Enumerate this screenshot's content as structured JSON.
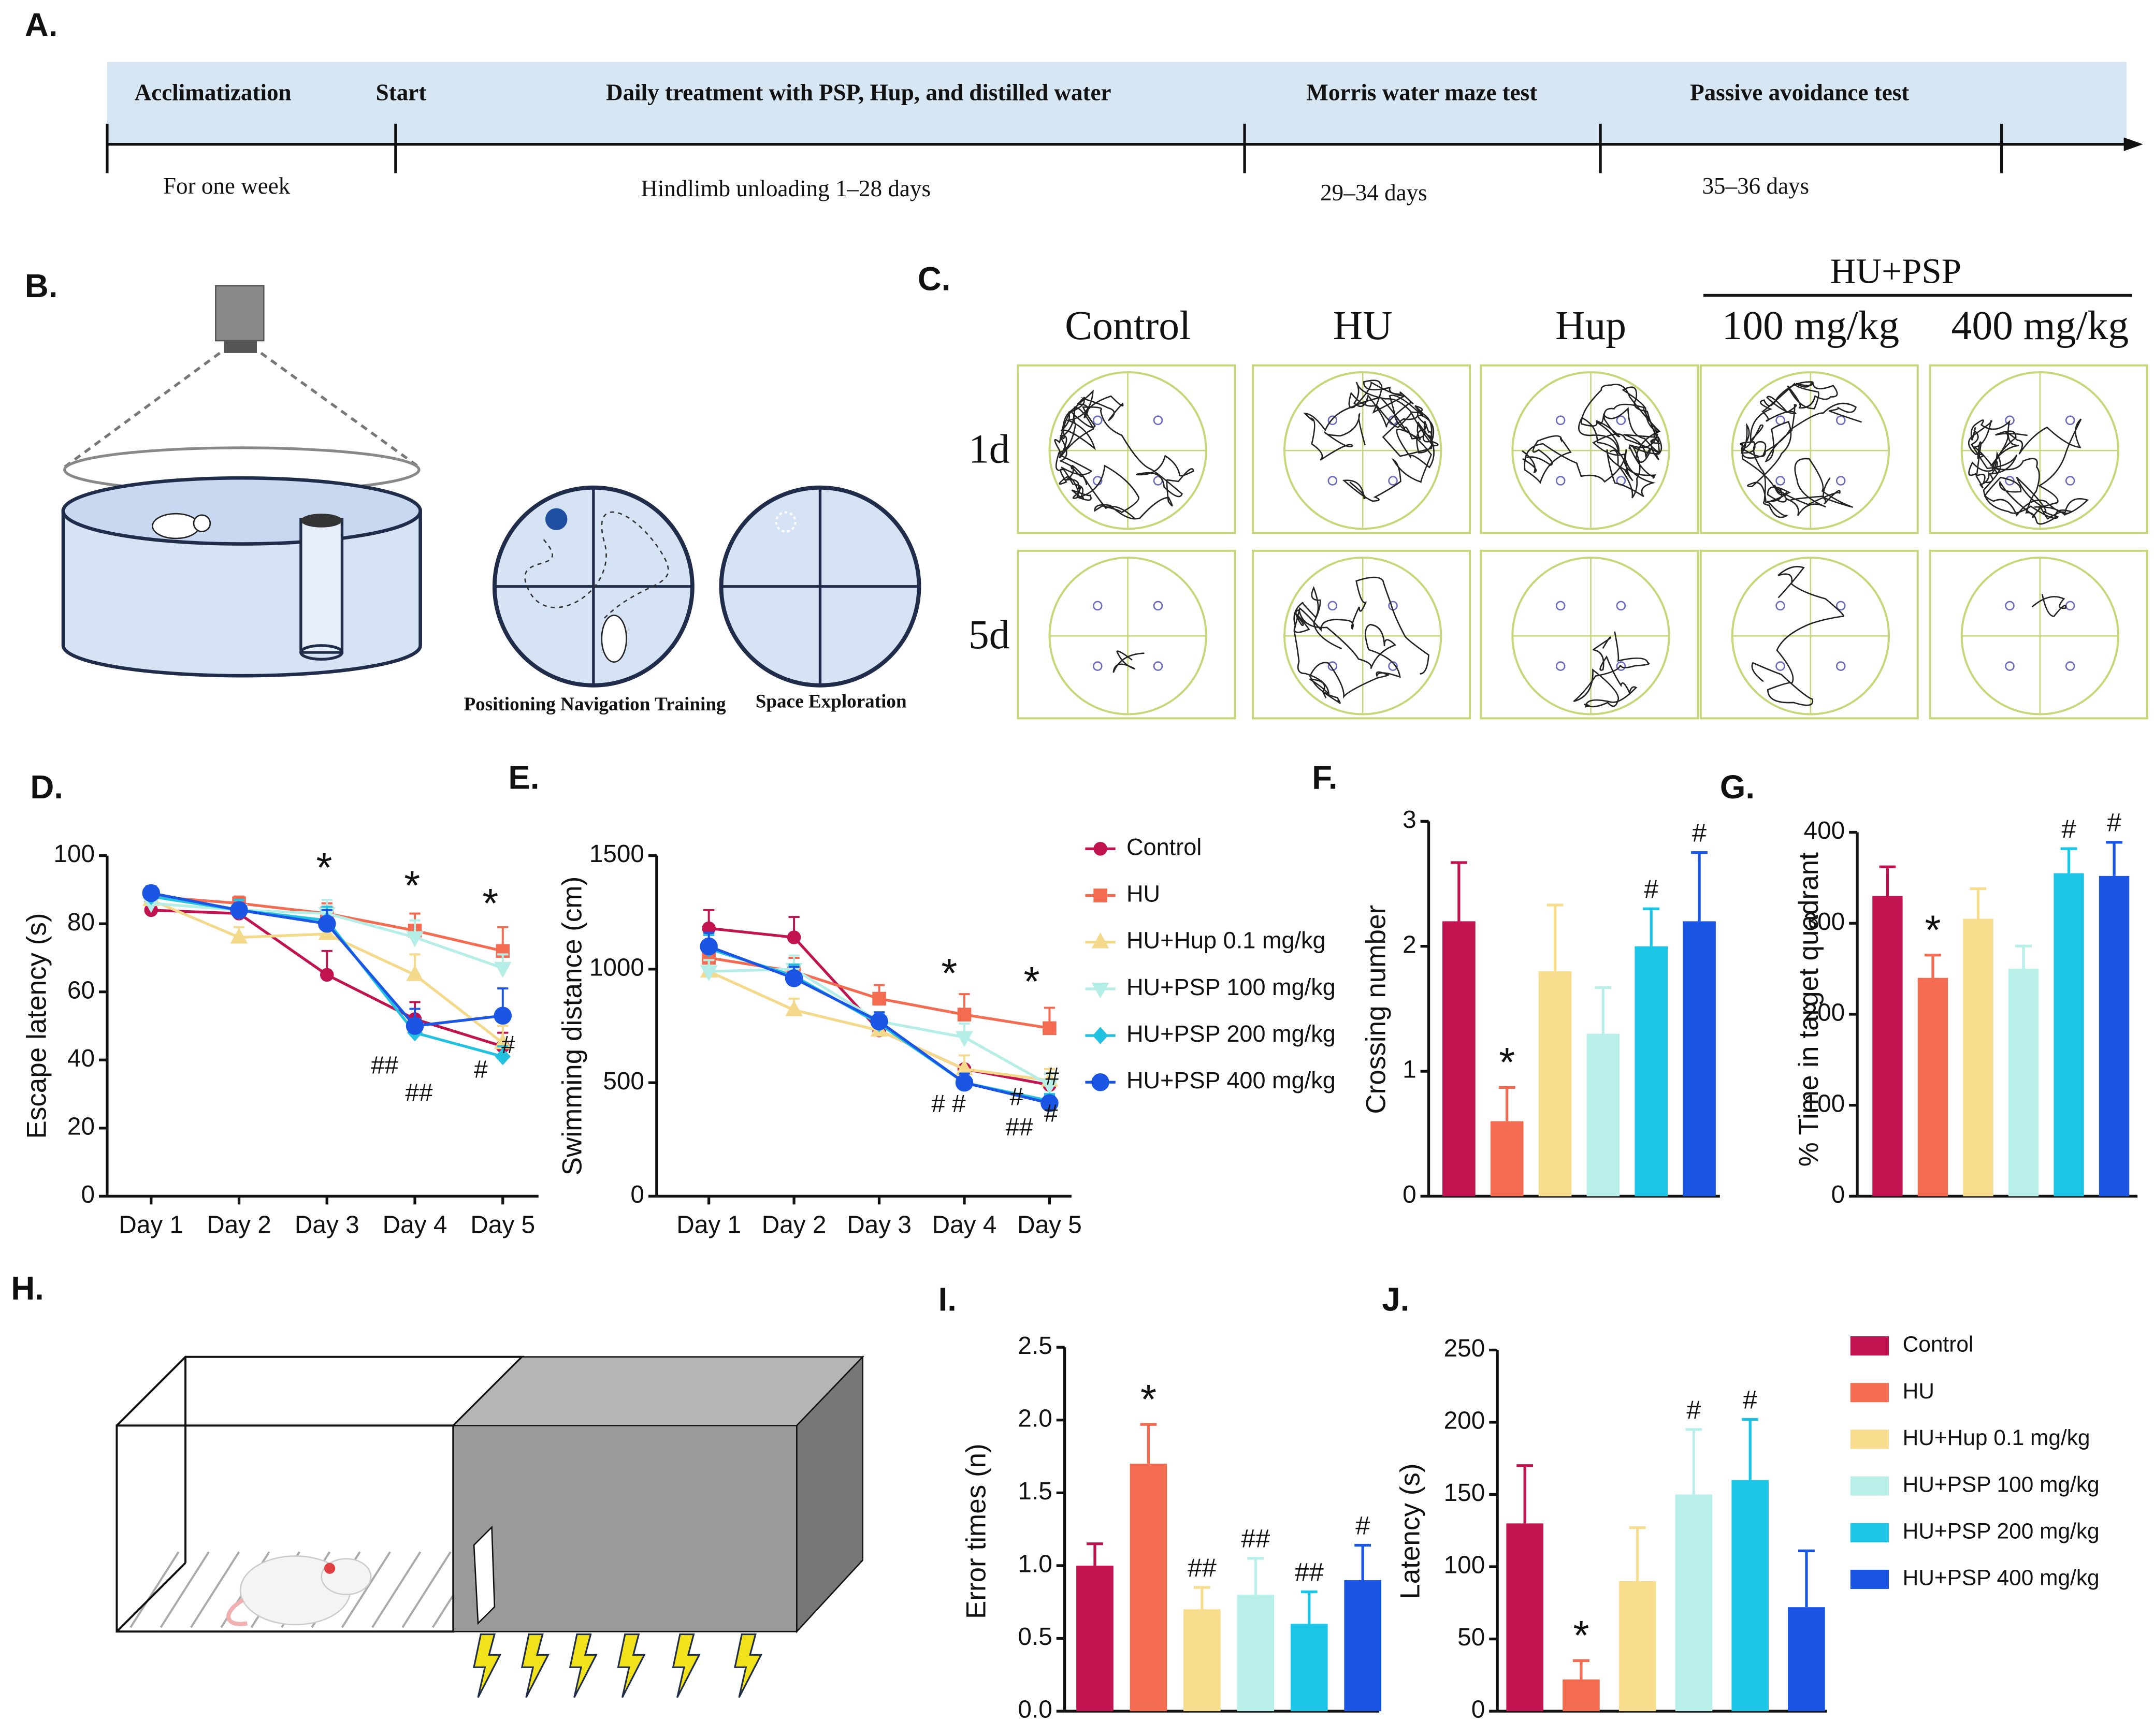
{
  "timeline": {
    "panel": "A.",
    "phases": [
      "Acclimatization",
      "Start",
      "Daily treatment with PSP, Hup, and distilled water",
      "Morris water maze test",
      "Passive avoidance test"
    ],
    "periods": [
      "For one week",
      "Hindlimb unloading 1–28 days",
      "29–34 days",
      "35–36 days"
    ]
  },
  "maze": {
    "panel": "B.",
    "captions": [
      "Positioning Navigation Training",
      "Space Exploration"
    ]
  },
  "tracks": {
    "panel": "C.",
    "group": "HU+PSP",
    "columns": [
      "Control",
      "HU",
      "Hup",
      "100 mg/kg",
      "400 mg/kg"
    ],
    "rows": [
      "1d",
      "5d"
    ]
  },
  "passive": {
    "panel": "H."
  },
  "chart_data": [
    {
      "type": "line",
      "panel": "D.",
      "y_label": "Escape latency (s)",
      "categories": [
        "Day 1",
        "Day 2",
        "Day 3",
        "Day 4",
        "Day 5"
      ],
      "ylim": [
        0,
        100
      ],
      "yticks": [
        0,
        20,
        40,
        60,
        80,
        100
      ],
      "series": [
        {
          "color": "#c0134f",
          "marker": "circle",
          "values": [
            84,
            83,
            65,
            52,
            44
          ],
          "errors": [
            2,
            3,
            7,
            5,
            4
          ]
        },
        {
          "color": "#f36b50",
          "marker": "square",
          "values": [
            88,
            86,
            83,
            78,
            72
          ],
          "errors": [
            2,
            2,
            3,
            5,
            7
          ]
        },
        {
          "color": "#f5d98a",
          "marker": "triangle-up",
          "values": [
            87,
            76,
            77,
            65,
            45
          ],
          "errors": [
            3,
            3,
            4,
            6,
            5
          ]
        },
        {
          "color": "#b5eee6",
          "marker": "triangle-down",
          "values": [
            86,
            84,
            83,
            76,
            67
          ],
          "errors": [
            2,
            3,
            4,
            5,
            4
          ]
        },
        {
          "color": "#22c1e0",
          "marker": "diamond",
          "values": [
            88,
            84,
            81,
            48,
            41
          ],
          "errors": [
            2,
            3,
            4,
            4,
            3
          ]
        },
        {
          "color": "#1a55e3",
          "marker": "circle-large",
          "values": [
            89,
            84,
            80,
            50,
            53
          ],
          "errors": [
            2,
            2,
            4,
            5,
            8
          ]
        }
      ],
      "annotations": [
        "*",
        "*",
        "*",
        "##",
        "##",
        "#",
        "#"
      ]
    },
    {
      "type": "line",
      "panel": "E.",
      "y_label": "Swimming distance (cm)",
      "categories": [
        "Day 1",
        "Day 2",
        "Day 3",
        "Day 4",
        "Day 5"
      ],
      "ylim": [
        0,
        1500
      ],
      "yticks": [
        0,
        500,
        1000,
        1500
      ],
      "series": [
        {
          "name": "Control",
          "color": "#c0134f",
          "marker": "circle",
          "values": [
            1180,
            1140,
            730,
            560,
            490
          ],
          "errors": [
            80,
            90,
            40,
            60,
            50
          ]
        },
        {
          "name": "HU",
          "color": "#f36b50",
          "marker": "square",
          "values": [
            1050,
            990,
            870,
            800,
            740
          ],
          "errors": [
            60,
            60,
            60,
            90,
            90
          ]
        },
        {
          "name": "HU+Hup 0.1 mg/kg",
          "color": "#f5d98a",
          "marker": "triangle-up",
          "values": [
            990,
            820,
            730,
            560,
            510
          ],
          "errors": [
            50,
            50,
            40,
            60,
            50
          ]
        },
        {
          "name": "HU+PSP 100 mg/kg",
          "color": "#b5eee6",
          "marker": "triangle-down",
          "values": [
            990,
            1000,
            770,
            700,
            490
          ],
          "errors": [
            50,
            60,
            40,
            60,
            50
          ]
        },
        {
          "name": "HU+PSP 200 mg/kg",
          "color": "#22c1e0",
          "marker": "diamond",
          "values": [
            1090,
            970,
            760,
            500,
            420
          ],
          "errors": [
            60,
            50,
            40,
            40,
            30
          ]
        },
        {
          "name": "HU+PSP 400 mg/kg",
          "color": "#1a55e3",
          "marker": "circle-large",
          "values": [
            1100,
            960,
            770,
            500,
            410
          ],
          "errors": [
            60,
            50,
            40,
            40,
            30
          ]
        }
      ],
      "annotations": [
        "*",
        "*",
        "#",
        "#",
        "#",
        "##",
        "#",
        "#"
      ]
    },
    {
      "type": "bar",
      "panel": "F.",
      "y_label": "Crossing number",
      "ylim": [
        0,
        3
      ],
      "yticks": [
        0,
        1,
        2,
        3
      ],
      "colors": [
        "#c0134f",
        "#f36b50",
        "#f8dd8e",
        "#b8efe8",
        "#1cc5e6",
        "#1a55e3"
      ],
      "values": [
        2.2,
        0.6,
        1.8,
        1.3,
        2.0,
        2.2
      ],
      "errors": [
        0.47,
        0.27,
        0.53,
        0.37,
        0.3,
        0.55
      ],
      "marks": [
        null,
        "*",
        null,
        null,
        "#",
        "#"
      ]
    },
    {
      "type": "bar",
      "panel": "G.",
      "y_label": "% Time in target quadrant",
      "ylim": [
        0,
        400
      ],
      "yticks": [
        0,
        100,
        200,
        300,
        400
      ],
      "colors": [
        "#c0134f",
        "#f36b50",
        "#f8dd8e",
        "#b8efe8",
        "#1cc5e6",
        "#1a55e3"
      ],
      "values": [
        330,
        240,
        305,
        250,
        355,
        352
      ],
      "errors": [
        32,
        25,
        33,
        25,
        27,
        37
      ],
      "marks": [
        null,
        "*",
        null,
        null,
        "#",
        "#"
      ]
    },
    {
      "type": "bar",
      "panel": "I.",
      "y_label": "Error times (n)",
      "ylim": [
        0,
        2.5
      ],
      "yticks": [
        {
          "value": 0,
          "label": "0.0"
        },
        0.5,
        {
          "value": 1,
          "label": "1.0"
        },
        1.5,
        {
          "value": 2,
          "label": "2.0"
        },
        2.5
      ],
      "colors": [
        "#c0134f",
        "#f36b50",
        "#f8dd8e",
        "#b8efe8",
        "#1cc5e6",
        "#1a55e3"
      ],
      "values": [
        1.0,
        1.7,
        0.7,
        0.8,
        0.6,
        0.9
      ],
      "errors": [
        0.15,
        0.27,
        0.15,
        0.25,
        0.22,
        0.24
      ],
      "marks": [
        null,
        "*",
        "##",
        "##",
        "##",
        "#"
      ]
    },
    {
      "type": "bar",
      "panel": "J.",
      "y_label": "Latency (s)",
      "ylim": [
        0,
        250
      ],
      "yticks": [
        0,
        50,
        100,
        150,
        200,
        250
      ],
      "categories": [
        "Control",
        "HU",
        "HU+Hup 0.1 mg/kg",
        "HU+PSP 100 mg/kg",
        "HU+PSP 200 mg/kg",
        "HU+PSP 400 mg/kg"
      ],
      "colors": [
        "#c0134f",
        "#f36b50",
        "#f8dd8e",
        "#b8efe8",
        "#1cc5e6",
        "#1a55e3"
      ],
      "values": [
        130,
        22,
        90,
        150,
        160,
        72
      ],
      "errors": [
        40,
        13,
        37,
        45,
        42,
        39
      ],
      "marks": [
        null,
        "*",
        null,
        "#",
        "#",
        null
      ]
    }
  ]
}
